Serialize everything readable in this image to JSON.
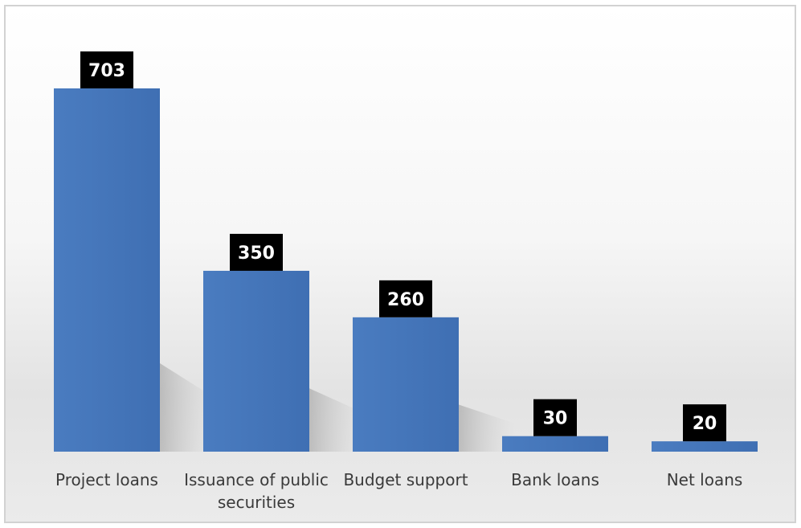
{
  "chart_data": {
    "type": "bar",
    "title": "",
    "xlabel": "",
    "ylabel": "",
    "categories": [
      [
        "Project loans"
      ],
      [
        "Issuance of public",
        "securities"
      ],
      [
        "Budget support"
      ],
      [
        "Bank loans"
      ],
      [
        "Net loans"
      ]
    ],
    "values": [
      703,
      350,
      260,
      30,
      20
    ],
    "data_labels": [
      "703",
      "350",
      "260",
      "30",
      "20"
    ],
    "ylim": [
      0,
      703
    ],
    "grid": false,
    "legend": "none",
    "colors": {
      "bar": "#4a7cc0",
      "bar_dark": "#3a68aa",
      "label_box": "#000000",
      "label_text": "#ffffff",
      "axis_text": "#3a3a3a"
    }
  }
}
